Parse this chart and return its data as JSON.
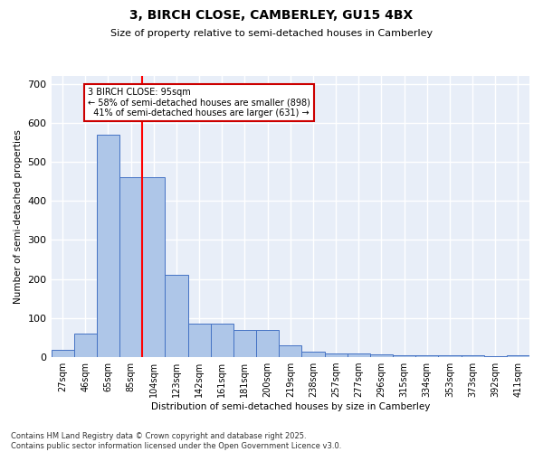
{
  "title": "3, BIRCH CLOSE, CAMBERLEY, GU15 4BX",
  "subtitle": "Size of property relative to semi-detached houses in Camberley",
  "xlabel": "Distribution of semi-detached houses by size in Camberley",
  "ylabel": "Number of semi-detached properties",
  "categories": [
    "27sqm",
    "46sqm",
    "65sqm",
    "85sqm",
    "104sqm",
    "123sqm",
    "142sqm",
    "161sqm",
    "181sqm",
    "200sqm",
    "219sqm",
    "238sqm",
    "257sqm",
    "277sqm",
    "296sqm",
    "315sqm",
    "334sqm",
    "353sqm",
    "373sqm",
    "392sqm",
    "411sqm"
  ],
  "bar_values": [
    18,
    60,
    570,
    460,
    460,
    210,
    85,
    85,
    70,
    70,
    30,
    14,
    9,
    9,
    8,
    5,
    5,
    5,
    5,
    3,
    5
  ],
  "bar_color": "#aec6e8",
  "bar_edge_color": "#4472c4",
  "property_size": "95sqm",
  "property_label": "3 BIRCH CLOSE: 95sqm",
  "pct_smaller": 58,
  "count_smaller": 898,
  "pct_larger": 41,
  "count_larger": 631,
  "annotation_box_color": "#cc0000",
  "ylim": [
    0,
    720
  ],
  "yticks": [
    0,
    100,
    200,
    300,
    400,
    500,
    600,
    700
  ],
  "background_color": "#e8eef8",
  "grid_color": "#ffffff",
  "footer_line1": "Contains HM Land Registry data © Crown copyright and database right 2025.",
  "footer_line2": "Contains public sector information licensed under the Open Government Licence v3.0."
}
